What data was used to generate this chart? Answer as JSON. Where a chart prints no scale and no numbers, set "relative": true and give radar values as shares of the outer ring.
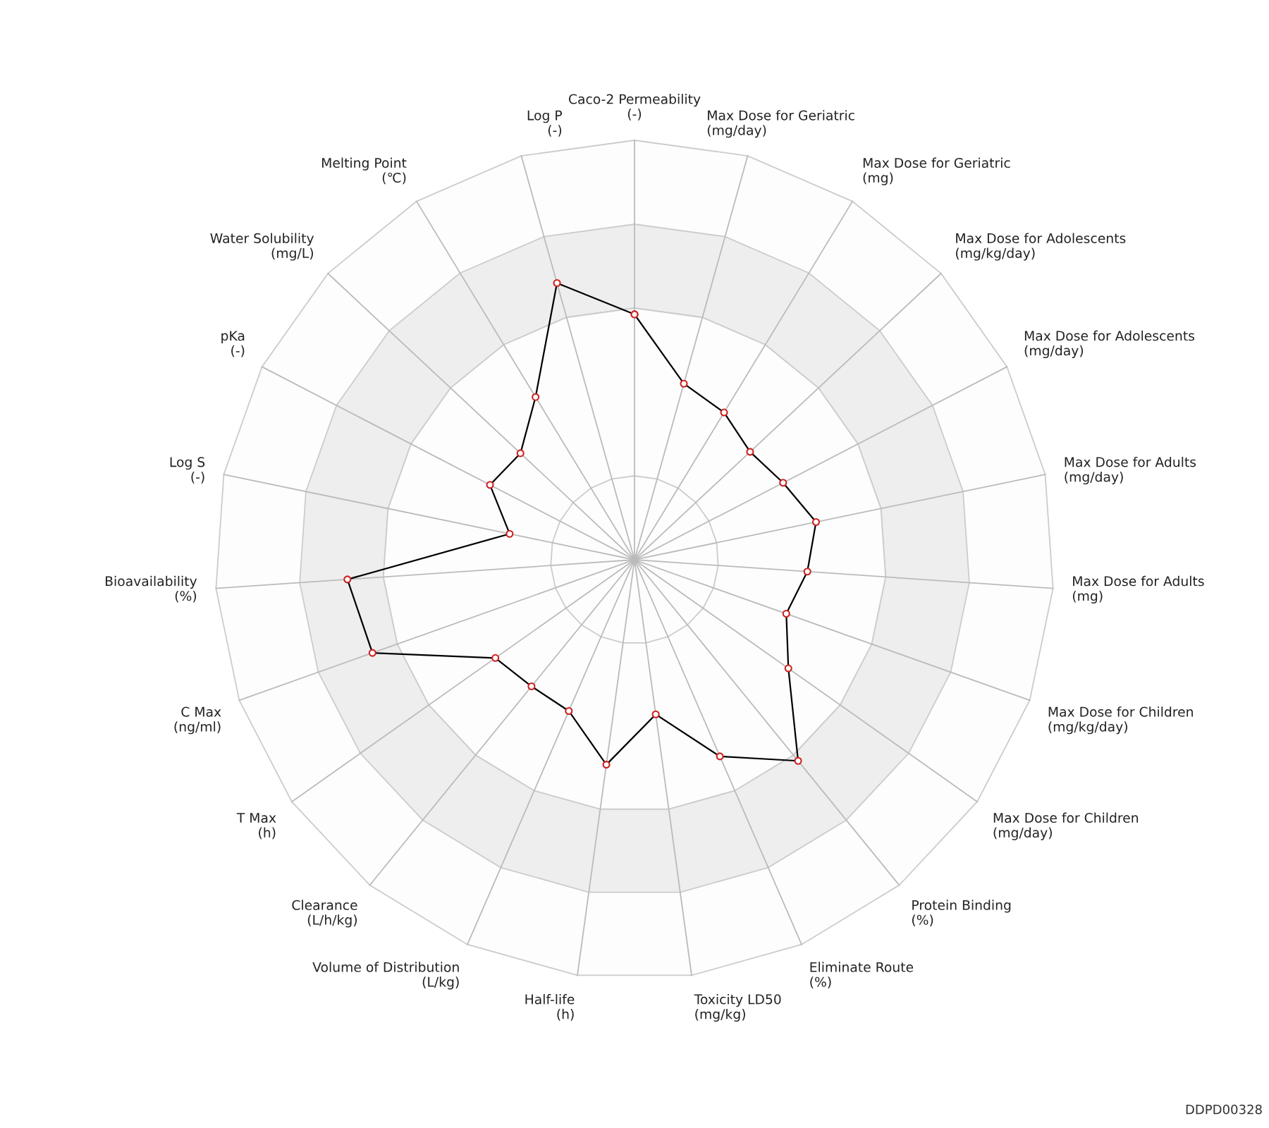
{
  "chart_data": {
    "type": "radar",
    "relative": true,
    "marker": "circle",
    "grid": true,
    "categories": [
      "Caco-2 Permeability\n(-)",
      "Max Dose for Geriatric\n(mg/day)",
      "Max Dose for Geriatric\n(mg)",
      "Max Dose for Adolescents\n(mg/kg/day)",
      "Max Dose for Adolescents\n(mg/day)",
      "Max Dose for Adults\n(mg/day)",
      "Max Dose for Adults\n(mg)",
      "Max Dose for Children\n(mg/kg/day)",
      "Max Dose for Children\n(mg/day)",
      "Protein Binding\n(%)",
      "Eliminate Route\n(%)",
      "Toxicity LD50\n(mg/kg)",
      "Half-life\n(h)",
      "Volume of Distribution\n(L/kg)",
      "Clearance\n(L/h/kg)",
      "T Max\n(h)",
      "C Max\n(ng/ml)",
      "Bioavailability\n(%)",
      "Log S\n(-)",
      "pKa\n(-)",
      "Water Solubility\n(mg/L)",
      "Melting Point\n(℃)",
      "Log P\n(-)"
    ],
    "series": [
      {
        "color": "#000000",
        "values": [
          0.585,
          0.436,
          0.411,
          0.377,
          0.399,
          0.442,
          0.413,
          0.384,
          0.449,
          0.618,
          0.511,
          0.372,
          0.493,
          0.393,
          0.389,
          0.406,
          0.663,
          0.686,
          0.304,
          0.388,
          0.372,
          0.454,
          0.685
        ]
      }
    ],
    "annotations": [
      "DDPD00328"
    ]
  }
}
